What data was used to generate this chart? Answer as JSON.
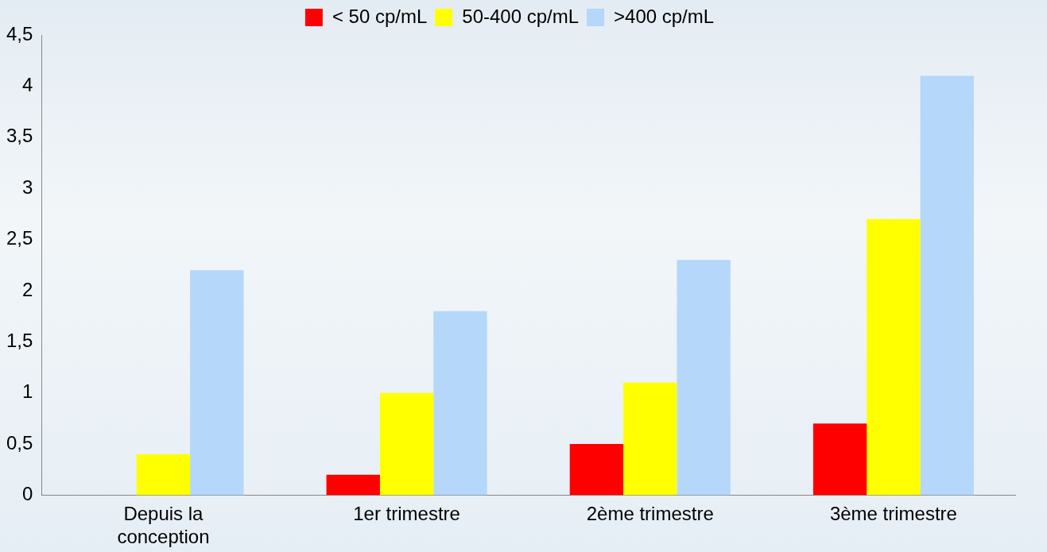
{
  "chart_data": {
    "type": "bar",
    "categories": [
      "Depuis la conception",
      "1er trimestre",
      "2ème trimestre",
      "3ème trimestre"
    ],
    "series": [
      {
        "name": "< 50 cp/mL",
        "color": "#ff0000",
        "values": [
          0,
          0.2,
          0.5,
          0.7
        ]
      },
      {
        "name": "50-400 cp/mL",
        "color": "#ffff00",
        "values": [
          0.4,
          1.0,
          1.1,
          2.7
        ]
      },
      {
        "name": ">400 cp/mL",
        "color": "#b4d7fa",
        "values": [
          2.2,
          1.8,
          2.3,
          4.1
        ]
      }
    ],
    "ylim": [
      0,
      4.5
    ],
    "yticks": [
      0,
      {
        "value": 0.5,
        "label": "0,5"
      },
      1,
      {
        "value": 1.5,
        "label": "1,5"
      },
      2,
      {
        "value": 2.5,
        "label": "2,5"
      },
      3,
      {
        "value": 3.5,
        "label": "3,5"
      },
      4,
      {
        "value": 4.5,
        "label": "4,5"
      }
    ],
    "grid": false,
    "legend": "top"
  }
}
